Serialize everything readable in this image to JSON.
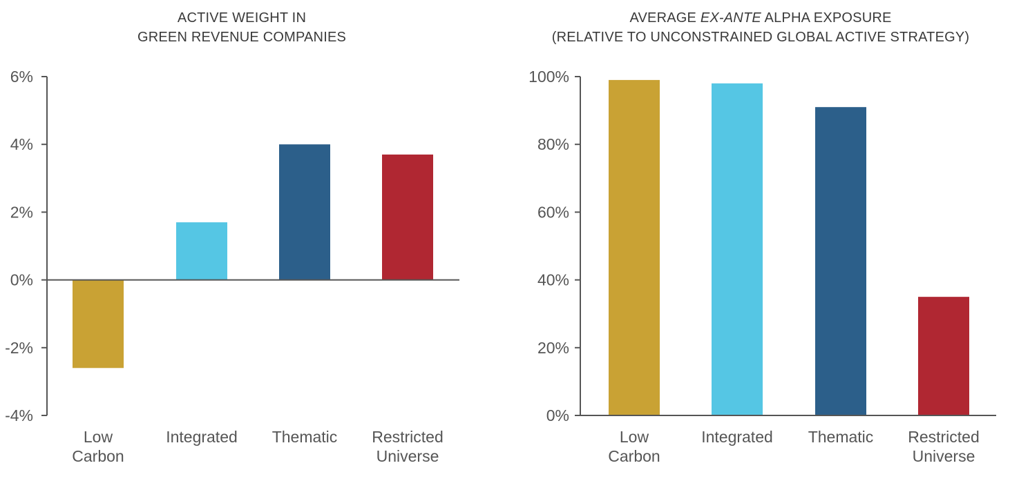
{
  "colors": {
    "low_carbon": "#C9A234",
    "integrated": "#55C6E4",
    "thematic": "#2C5F8A",
    "restricted_universe": "#B02732",
    "axis": "#555555",
    "text": "#3a3a3a"
  },
  "chart_data": [
    {
      "type": "bar",
      "title_lines": [
        "ACTIVE WEIGHT IN",
        "GREEN REVENUE COMPANIES"
      ],
      "categories": [
        [
          "Low",
          "Carbon"
        ],
        [
          "Integrated"
        ],
        [
          "Thematic"
        ],
        [
          "Restricted",
          "Universe"
        ]
      ],
      "values": [
        -2.6,
        1.7,
        4.0,
        3.7
      ],
      "unit": "%",
      "ylim": [
        -4,
        6
      ],
      "yticks": [
        6,
        4,
        2,
        0,
        -2,
        -4
      ],
      "ytick_labels": [
        "6%",
        "4%",
        "2%",
        "0%",
        "-2%",
        "-4%"
      ],
      "grid": false,
      "legend": "none"
    },
    {
      "type": "bar",
      "title_lines": [
        "AVERAGE EX-ANTE ALPHA EXPOSURE",
        "(RELATIVE TO UNCONSTRAINED GLOBAL ACTIVE STRATEGY)"
      ],
      "title_prefix": "AVERAGE ",
      "title_italic": "EX-ANTE",
      "title_suffix": " ALPHA EXPOSURE",
      "title_line2": "(RELATIVE TO UNCONSTRAINED GLOBAL ACTIVE STRATEGY)",
      "categories": [
        [
          "Low",
          "Carbon"
        ],
        [
          "Integrated"
        ],
        [
          "Thematic"
        ],
        [
          "Restricted",
          "Universe"
        ]
      ],
      "values": [
        99,
        98,
        91,
        35
      ],
      "unit": "%",
      "ylim": [
        0,
        100
      ],
      "yticks": [
        100,
        80,
        60,
        40,
        20,
        0
      ],
      "ytick_labels": [
        "100%",
        "80%",
        "60%",
        "40%",
        "20%",
        "0%"
      ],
      "grid": false,
      "legend": "none"
    }
  ]
}
